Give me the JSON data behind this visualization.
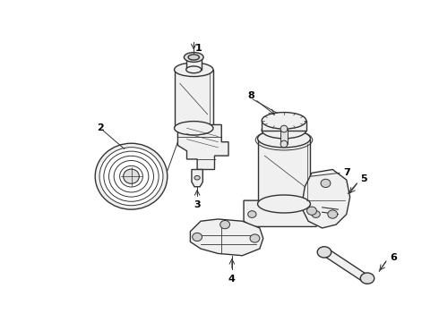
{
  "bg_color": "#ffffff",
  "line_color": "#333333",
  "lw": 1.0,
  "figsize": [
    4.9,
    3.6
  ],
  "dpi": 100
}
